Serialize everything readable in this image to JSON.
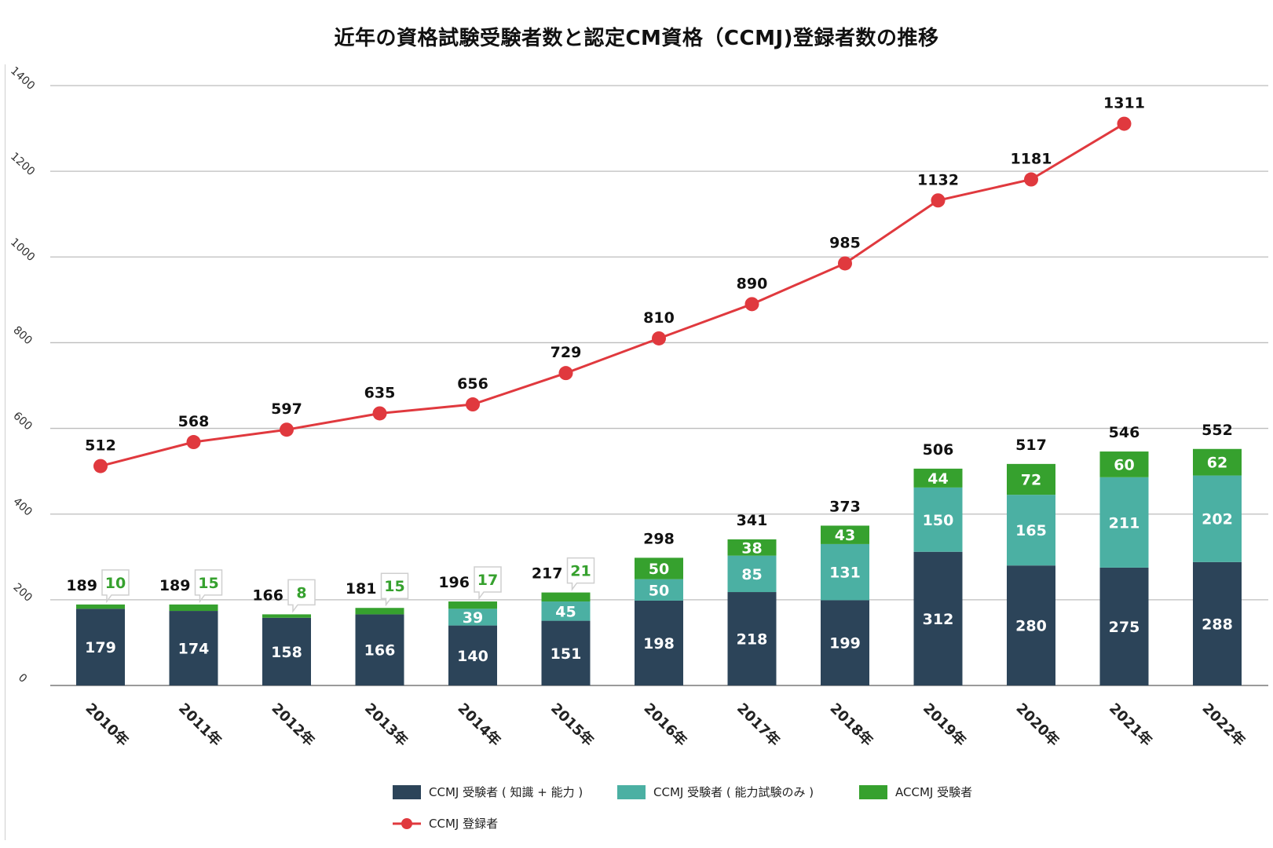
{
  "chart_data": {
    "type": "bar",
    "title": "近年の資格試験受験者数と認定CM資格（CCMJ)登録者数の推移",
    "categories": [
      "2010年",
      "2011年",
      "2012年",
      "2013年",
      "2014年",
      "2015年",
      "2016年",
      "2017年",
      "2018年",
      "2019年",
      "2020年",
      "2021年",
      "2022年"
    ],
    "y_ticks": [
      "0",
      "200",
      "400",
      "600",
      "800",
      "1000",
      "1200",
      "1400"
    ],
    "ylim": [
      0,
      1400
    ],
    "grid": true,
    "stacked": true,
    "series": [
      {
        "name": "CCMJ 受験者 ( 知識 + 能力 )",
        "type": "bar",
        "color": "#2c4459",
        "values": [
          179,
          174,
          158,
          166,
          140,
          151,
          198,
          218,
          199,
          312,
          280,
          275,
          288
        ]
      },
      {
        "name": "CCMJ 受験者 ( 能力試験のみ )",
        "type": "bar",
        "color": "#4bb0a3",
        "values": [
          null,
          null,
          null,
          null,
          39,
          45,
          50,
          85,
          131,
          150,
          165,
          211,
          202
        ]
      },
      {
        "name": "ACCMJ 受験者",
        "type": "bar",
        "color": "#36a12e",
        "values": [
          10,
          15,
          8,
          15,
          17,
          21,
          50,
          38,
          43,
          44,
          72,
          60,
          62
        ]
      },
      {
        "name": "CCMJ 登録者",
        "type": "line",
        "color": "#e0393e",
        "values": [
          512,
          568,
          597,
          635,
          656,
          729,
          810,
          890,
          985,
          1132,
          1181,
          1311,
          null
        ]
      }
    ],
    "bar_totals": [
      189,
      189,
      166,
      181,
      196,
      217,
      298,
      341,
      373,
      506,
      517,
      546,
      552
    ],
    "legend_position": "bottom"
  }
}
